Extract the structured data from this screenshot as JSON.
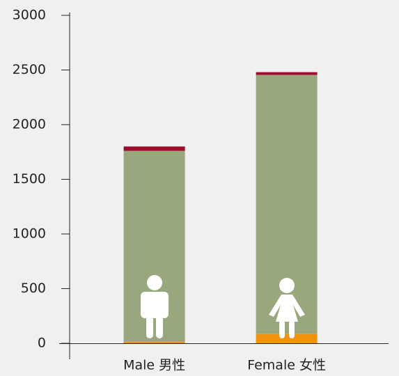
{
  "chart_data": {
    "type": "bar",
    "stacked": true,
    "categories": [
      "Male 男性",
      "Female 女性"
    ],
    "series": [
      {
        "color": "#f0920a",
        "values": [
          15,
          85
        ]
      },
      {
        "color": "#98a87c",
        "values": [
          1745,
          2370
        ]
      },
      {
        "color": "#9e0b2d",
        "values": [
          40,
          25
        ]
      }
    ],
    "ylim": [
      0,
      3000
    ],
    "yticks": [
      0,
      500,
      1000,
      1500,
      2000,
      2500,
      3000
    ],
    "grid": false
  }
}
